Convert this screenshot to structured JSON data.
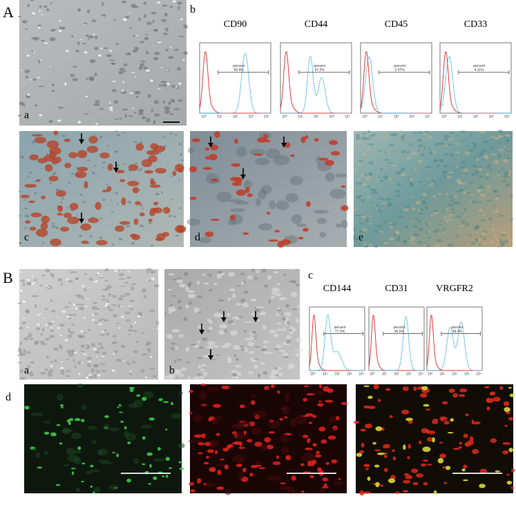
{
  "panel_A": {
    "label": "A",
    "micrographs": [
      {
        "label": "a"
      },
      {
        "label": "c"
      },
      {
        "label": "d"
      },
      {
        "label": "e"
      }
    ],
    "flow": {
      "label": "b",
      "x_ticks": [
        "10⁰",
        "10¹",
        "10²",
        "10³",
        "10⁴"
      ],
      "plots": [
        {
          "marker": "CD90",
          "gate": "percent",
          "value": "99.9%"
        },
        {
          "marker": "CD44",
          "gate": "percent",
          "value": "97.2%"
        },
        {
          "marker": "CD45",
          "gate": "percent",
          "value": "2.57%"
        },
        {
          "marker": "CD33",
          "gate": "percent",
          "value": "4.11%"
        }
      ]
    }
  },
  "panel_B": {
    "label": "B",
    "micrographs": [
      {
        "label": "a"
      },
      {
        "label": "b"
      }
    ],
    "flow": {
      "label": "c",
      "x_ticks": [
        "10⁰",
        "10¹",
        "10²",
        "10³",
        "10⁴"
      ],
      "plots": [
        {
          "marker": "CD144",
          "gate": "percent",
          "value": "77.2%"
        },
        {
          "marker": "CD31",
          "gate": "percent",
          "value": "99.6%"
        },
        {
          "marker": "VRGFR2",
          "gate": "percent",
          "value": "99.0%"
        }
      ]
    },
    "fluorescence": {
      "label": "d"
    }
  }
}
